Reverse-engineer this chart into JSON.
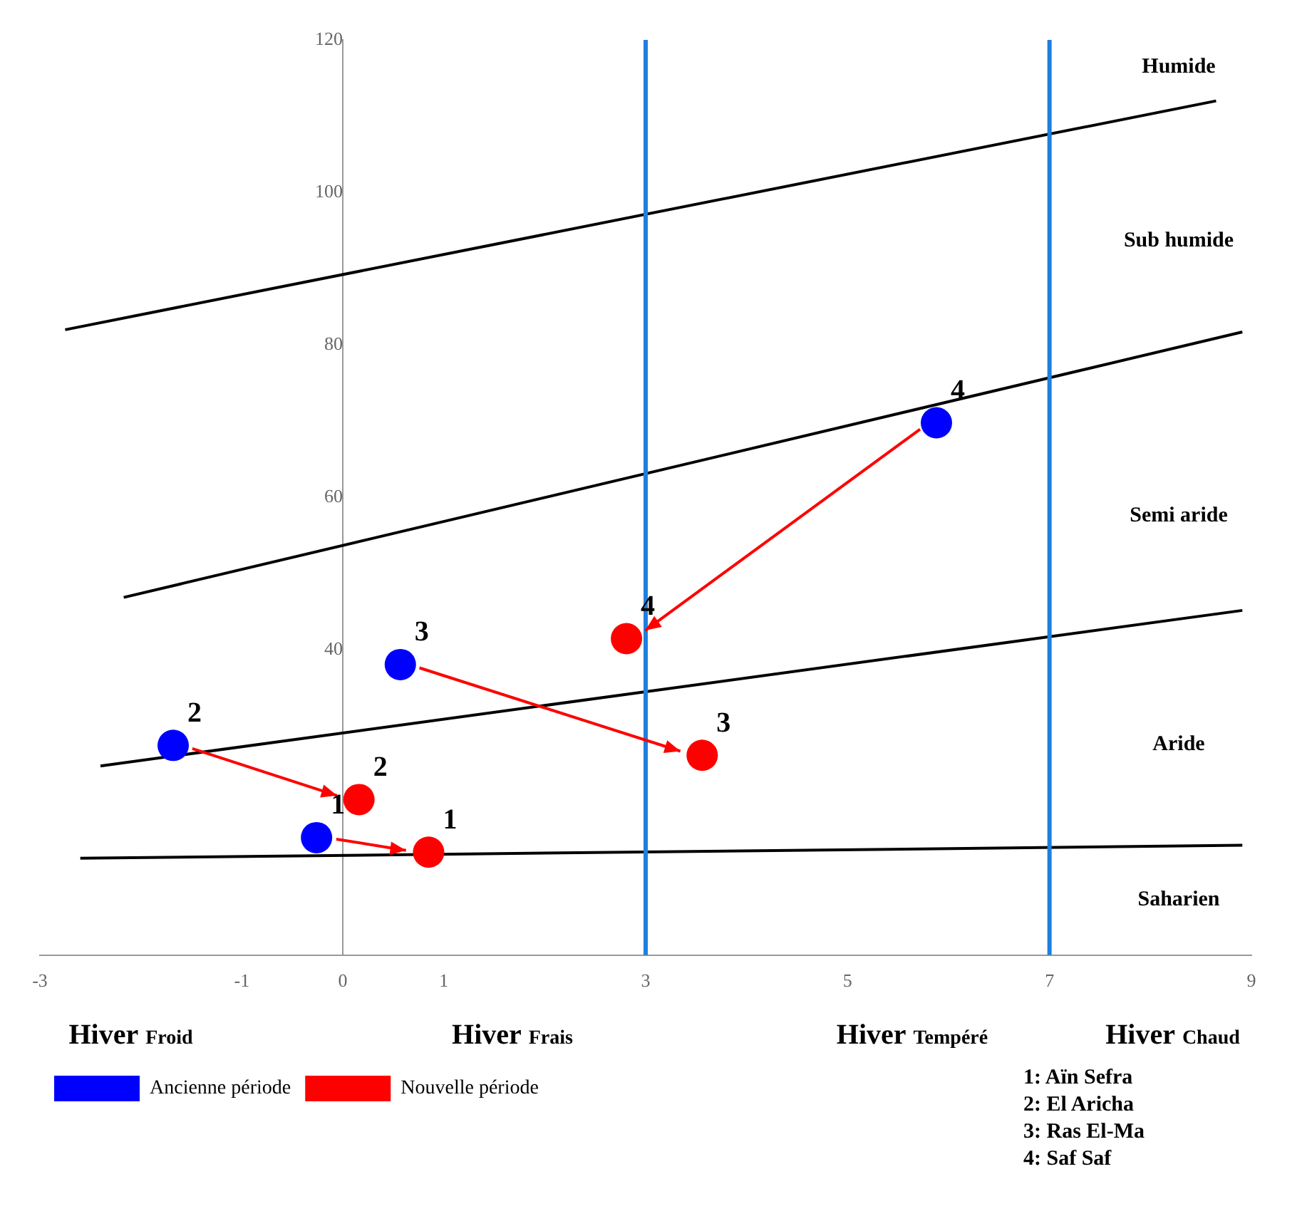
{
  "chart_data": {
    "type": "scatter",
    "xlim": [
      -3,
      9
    ],
    "ylim": [
      0,
      120
    ],
    "xticks": [
      -3,
      -1,
      0,
      1,
      3,
      5,
      7,
      9
    ],
    "yticks": [
      40,
      60,
      80,
      100,
      120
    ],
    "grid": false,
    "legend": "bottom left",
    "marker": "circle",
    "line_style": "solid",
    "series": [
      {
        "name": "Ancienne période",
        "color": "#0000ff",
        "x": [
          -0.26,
          -1.68,
          0.57,
          5.88
        ],
        "values": [
          15.4,
          27.5,
          38.1,
          69.8
        ]
      },
      {
        "name": "Nouvelle période",
        "color": "#ff0000",
        "x": [
          0.85,
          0.16,
          3.56,
          2.81
        ],
        "values": [
          13.5,
          20.4,
          26.2,
          41.5
        ]
      },
      {
        "type": "line",
        "marker": "none",
        "color": "#000000",
        "x": [
          -2.75,
          8.65
        ],
        "values": [
          82,
          112
        ]
      },
      {
        "type": "line",
        "marker": "none",
        "color": "#000000",
        "x": [
          -2.17,
          8.91
        ],
        "values": [
          46.9,
          81.7
        ]
      },
      {
        "type": "line",
        "marker": "none",
        "color": "#000000",
        "x": [
          -2.4,
          8.91
        ],
        "values": [
          24.8,
          45.2
        ]
      },
      {
        "type": "line",
        "marker": "none",
        "color": "#000000",
        "x": [
          -2.6,
          8.91
        ],
        "values": [
          12.7,
          14.4
        ]
      }
    ],
    "ref_lines": [
      {
        "axis": "x",
        "value": 3,
        "color": "#1e7fe0"
      },
      {
        "axis": "x",
        "value": 7,
        "color": "#1e7fe0"
      }
    ],
    "annotations": [
      {
        "text": "1",
        "x": -0.26,
        "y": 15.4
      },
      {
        "text": "2",
        "x": -1.68,
        "y": 27.5
      },
      {
        "text": "3",
        "x": 0.57,
        "y": 38.1
      },
      {
        "text": "4",
        "x": 5.88,
        "y": 69.8
      },
      {
        "text": "1",
        "x": 0.85,
        "y": 13.5
      },
      {
        "text": "2",
        "x": 0.16,
        "y": 20.4
      },
      {
        "text": "3",
        "x": 3.56,
        "y": 26.2
      },
      {
        "text": "4",
        "x": 2.81,
        "y": 41.5
      },
      "Humide",
      "Sub humide",
      "Semi aride",
      "Aride",
      "Saharien",
      "Hiver Froid",
      "Hiver Frais",
      "Hiver Tempéré",
      "Hiver Chaud",
      "1: Aïn Sefra",
      "2: El Aricha",
      "3: Ras El-Ma",
      "4: Saf Saf"
    ]
  }
}
